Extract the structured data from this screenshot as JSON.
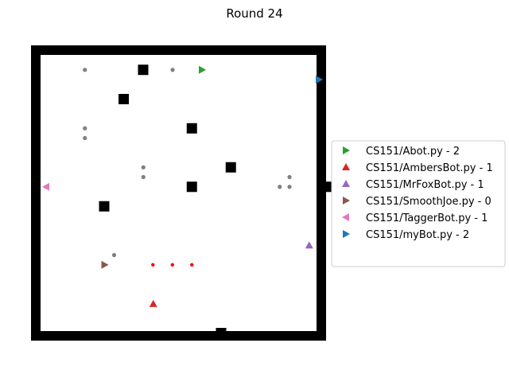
{
  "title": "Round 24",
  "colors": {
    "wall": "#000000",
    "floor": "#ffffff",
    "pellet_gray": "#808080",
    "pellet_red": "#ff0000"
  },
  "board": {
    "cols": 29,
    "rows": 29,
    "walls": [
      [
        10,
        1
      ],
      [
        8,
        4
      ],
      [
        15,
        7
      ],
      [
        19,
        11
      ],
      [
        29,
        13
      ],
      [
        15,
        13
      ],
      [
        6,
        15
      ],
      [
        18,
        28
      ]
    ],
    "gray_pellets": [
      [
        3,
        1
      ],
      [
        12,
        1
      ],
      [
        3,
        7
      ],
      [
        3,
        8
      ],
      [
        9,
        11
      ],
      [
        9,
        12
      ],
      [
        24,
        12
      ],
      [
        24,
        13
      ],
      [
        23,
        13
      ],
      [
        6,
        20
      ]
    ],
    "red_pellets": [
      [
        12,
        21
      ],
      [
        14,
        21
      ],
      [
        16,
        21
      ]
    ]
  },
  "players": [
    {
      "label": "CS151/Abot.py - 2",
      "color": "#2ca02c",
      "marker": "triangle-right",
      "pos": [
        16,
        1
      ]
    },
    {
      "label": "CS151/AmbersBot.py - 1",
      "color": "#d62728",
      "marker": "triangle-up",
      "pos": [
        11,
        25
      ]
    },
    {
      "label": "CS151/MrFoxBot.py - 1",
      "color": "#9467bd",
      "marker": "triangle-up",
      "pos": [
        27,
        19
      ]
    },
    {
      "label": "CS151/SmoothJoe.py - 0",
      "color": "#8c564b",
      "marker": "triangle-right",
      "pos": [
        6,
        21
      ]
    },
    {
      "label": "CS151/TaggerBot.py - 1",
      "color": "#e377c2",
      "marker": "triangle-left",
      "pos": [
        0,
        13
      ]
    },
    {
      "label": "CS151/myBot.py - 2",
      "color": "#1f77b4",
      "marker": "triangle-right",
      "pos": [
        28,
        2
      ]
    }
  ]
}
